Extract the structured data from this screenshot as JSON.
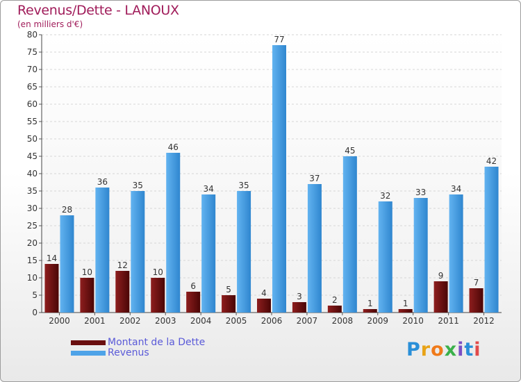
{
  "chart_data": {
    "type": "bar",
    "title": "Revenus/Dette - LANOUX",
    "subtitle": "(en milliers d'€)",
    "categories": [
      "2000",
      "2001",
      "2002",
      "2003",
      "2004",
      "2005",
      "2006",
      "2007",
      "2008",
      "2009",
      "2010",
      "2011",
      "2012"
    ],
    "series": [
      {
        "name": "Montant de la Dette",
        "color": "#7a1212",
        "values": [
          14,
          10,
          12,
          10,
          6,
          5,
          4,
          3,
          2,
          1,
          1,
          9,
          7
        ]
      },
      {
        "name": "Revenus",
        "color": "#4ea3e8",
        "values": [
          28,
          36,
          35,
          46,
          34,
          35,
          77,
          37,
          45,
          32,
          33,
          34,
          42
        ]
      }
    ],
    "ylim": [
      0,
      80
    ],
    "yticks": [
      "0",
      "5",
      "10",
      "15",
      "20",
      "25",
      "30",
      "35",
      "40",
      "45",
      "50",
      "55",
      "60",
      "65",
      "70",
      "75",
      "80"
    ],
    "grid": true,
    "legend_position": "bottom-left"
  },
  "logo_text": "Proxiti"
}
